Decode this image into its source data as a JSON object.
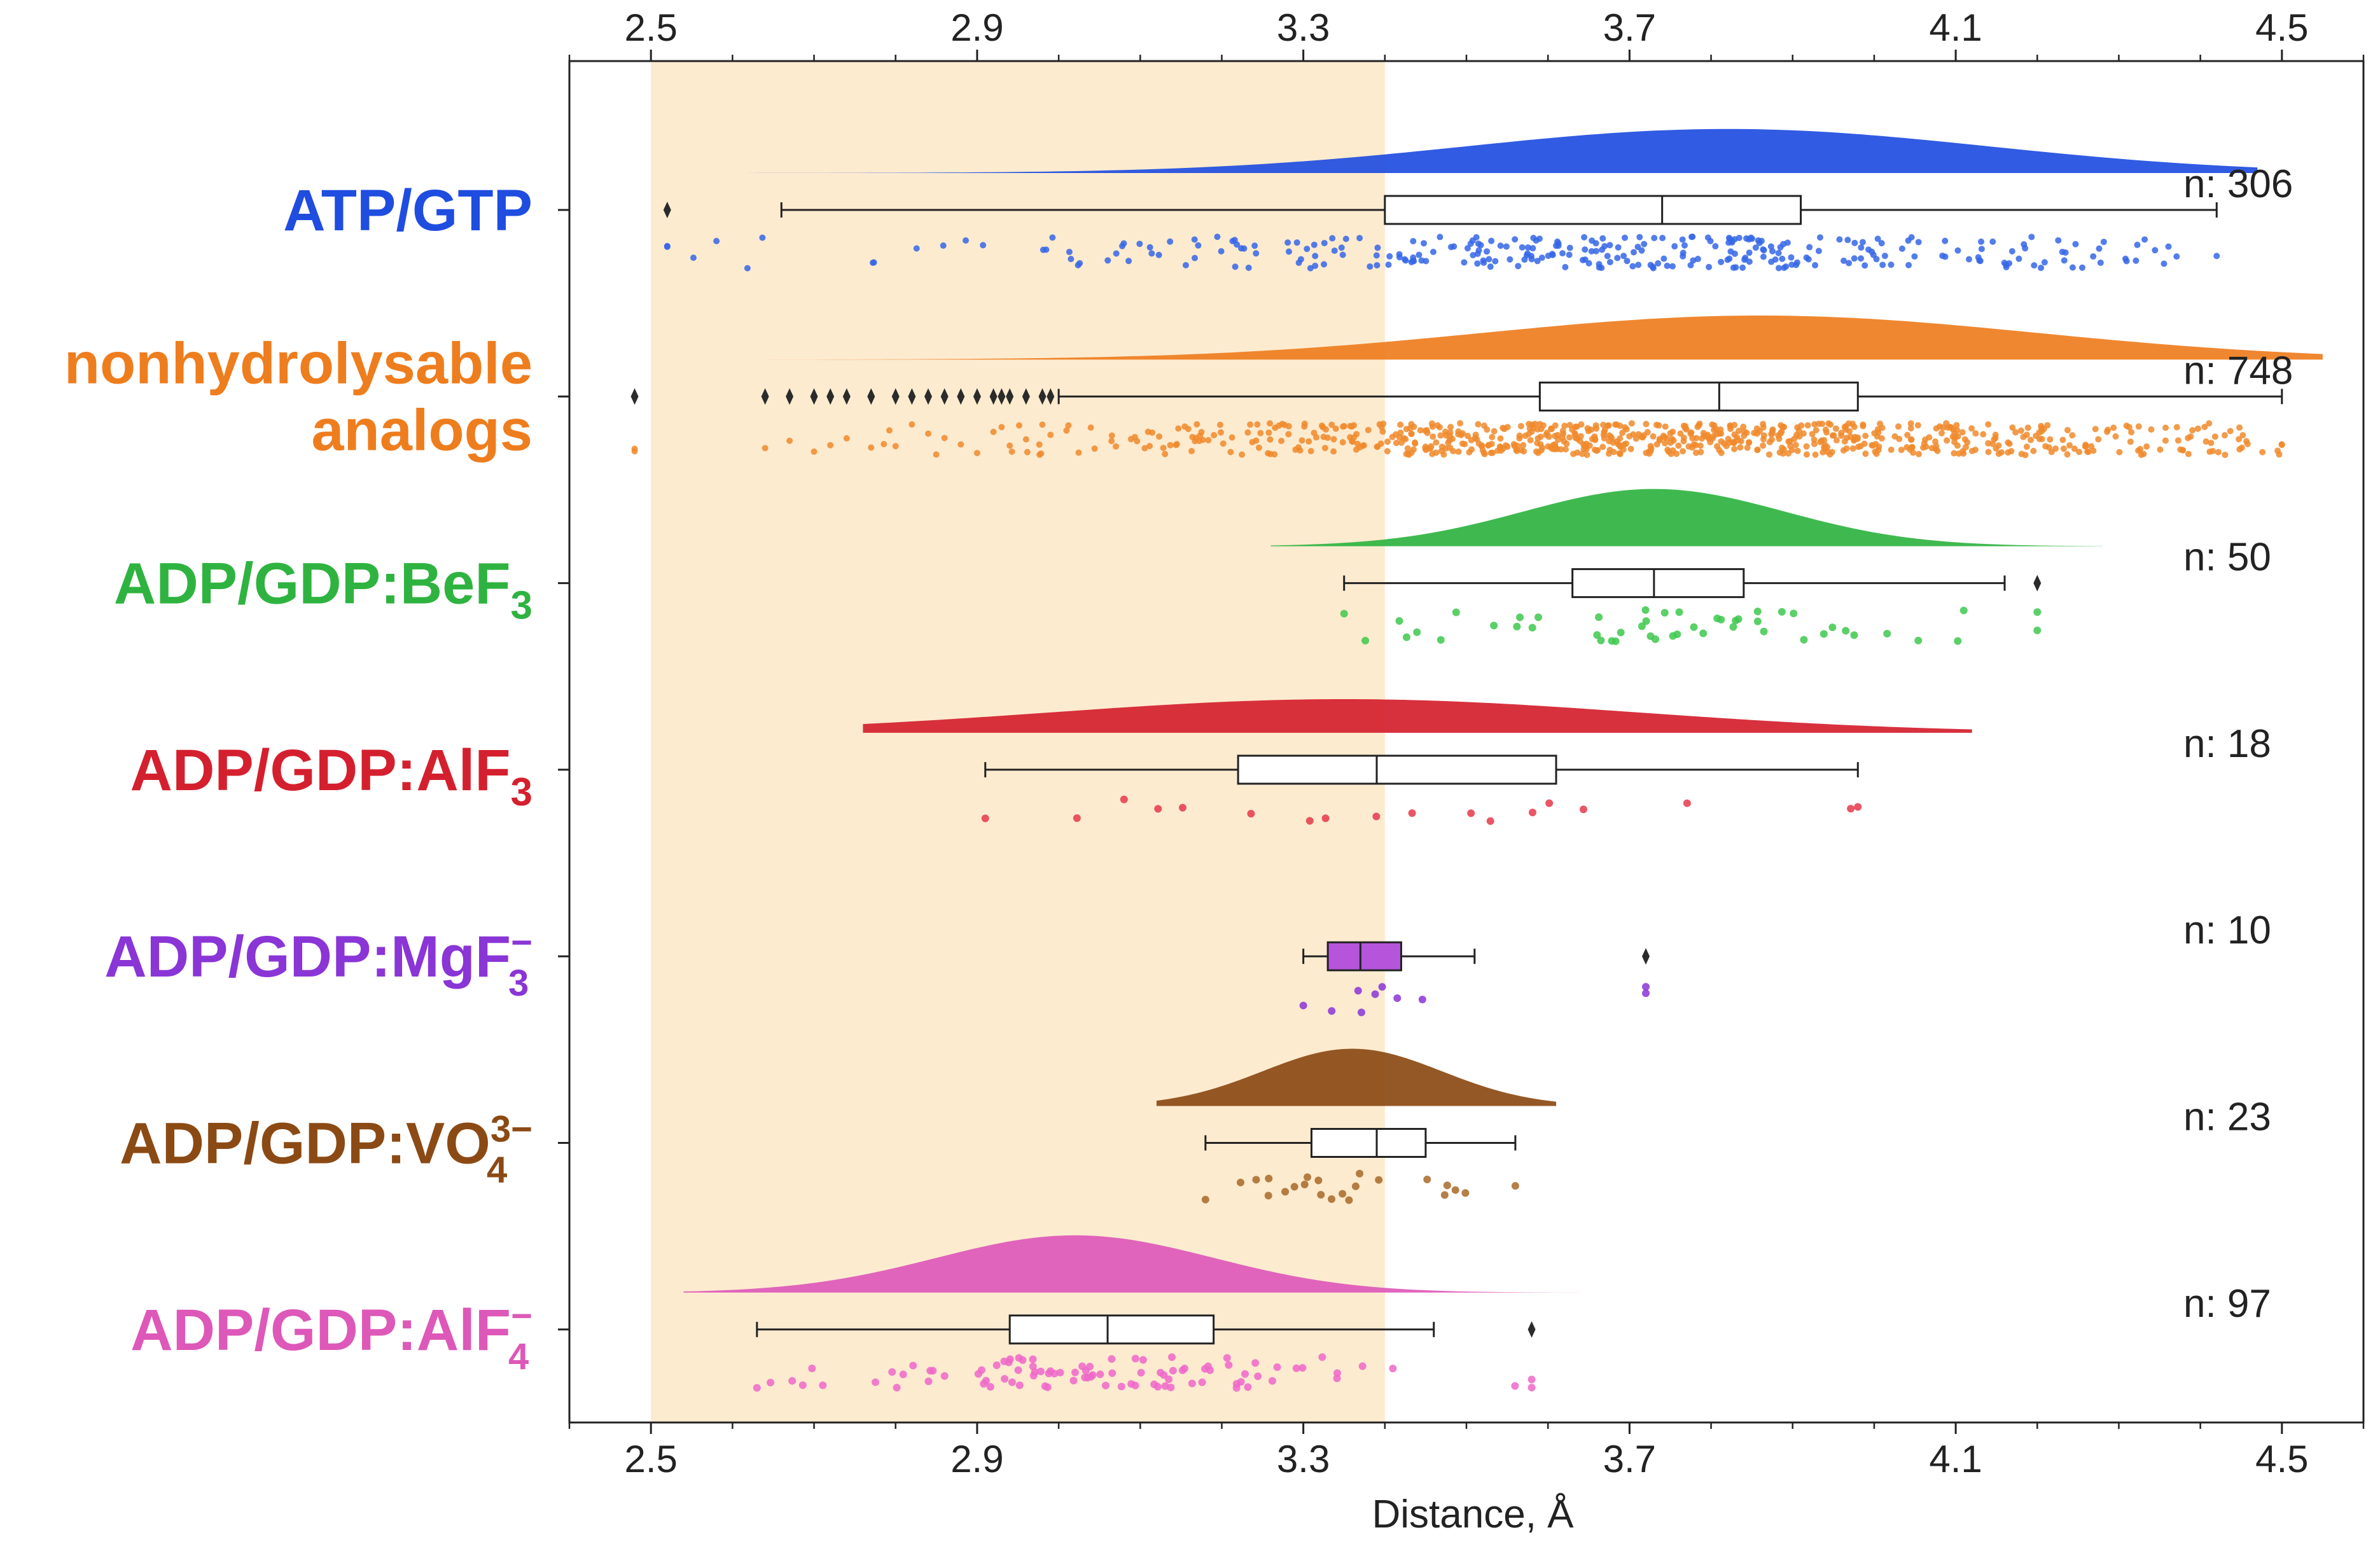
{
  "chart_data": {
    "type": "raincloud",
    "title": "",
    "xlabel": "Distance, Å",
    "ylabel": "",
    "xlim": [
      2.4,
      4.6
    ],
    "xticks": [
      2.5,
      2.9,
      3.3,
      3.7,
      4.1,
      4.5
    ],
    "xtick_labels": [
      "2.5",
      "2.9",
      "3.3",
      "3.7",
      "4.1",
      "4.5"
    ],
    "highlight_band": {
      "x0": 2.5,
      "x1": 3.4,
      "color": "#fdebd0"
    },
    "groups": [
      {
        "name": "ATP/GTP",
        "label_lines": [
          {
            "text": "ATP/GTP"
          }
        ],
        "n_label": "n: 306",
        "color": "#1f4de0",
        "point_color": "#3566e6",
        "box": {
          "whisker_low": 2.66,
          "q1": 3.4,
          "median": 3.74,
          "q3": 3.91,
          "whisker_high": 4.42
        },
        "outliers": [
          2.52
        ],
        "kde": {
          "mode": 3.82,
          "sd": 0.32,
          "x_min": 2.24,
          "x_max": 4.47,
          "peak": 0.55
        },
        "points": {
          "count": 306,
          "mean": 3.72,
          "sd": 0.4,
          "min": 2.52,
          "max": 4.42
        },
        "box_fill": "#ffffff"
      },
      {
        "name": "nonhydrolysable analogs",
        "label_lines": [
          {
            "text": "nonhydrolysable"
          },
          {
            "text": "analogs"
          }
        ],
        "n_label": "n: 748",
        "color": "#ee7d1e",
        "point_color": "#f08a2c",
        "box": {
          "whisker_low": 3.0,
          "q1": 3.59,
          "median": 3.81,
          "q3": 3.98,
          "whisker_high": 4.5
        },
        "outliers": [
          2.48,
          2.64,
          2.67,
          2.7,
          2.72,
          2.74,
          2.77,
          2.8,
          2.82,
          2.84,
          2.86,
          2.88,
          2.9,
          2.92,
          2.93,
          2.94,
          2.96,
          2.98,
          2.99
        ],
        "kde": {
          "mode": 3.86,
          "sd": 0.34,
          "x_min": 2.0,
          "x_max": 4.55,
          "peak": 0.55
        },
        "points": {
          "count": 748,
          "mean": 3.76,
          "sd": 0.38,
          "min": 2.48,
          "max": 4.5
        },
        "box_fill": "#ffffff"
      },
      {
        "name": "ADP/GDP:BeF3",
        "label_lines": [
          {
            "text": "ADP/GDP:BeF",
            "sub": "3"
          }
        ],
        "n_label": "n: 50",
        "color": "#2fb340",
        "point_color": "#3ec84e",
        "box": {
          "whisker_low": 3.35,
          "q1": 3.63,
          "median": 3.73,
          "q3": 3.84,
          "whisker_high": 4.16
        },
        "outliers": [
          4.2
        ],
        "kde": {
          "mode": 3.73,
          "sd": 0.16,
          "x_min": 3.26,
          "x_max": 4.28,
          "peak": 0.8
        },
        "points": {
          "count": 50,
          "mean": 3.74,
          "sd": 0.18,
          "min": 3.35,
          "max": 4.2
        },
        "box_fill": "#ffffff"
      },
      {
        "name": "ADP/GDP:AlF3",
        "label_lines": [
          {
            "text": "ADP/GDP:AlF",
            "sub": "3"
          }
        ],
        "n_label": "n: 18",
        "color": "#d4202e",
        "point_color": "#e5384a",
        "box": {
          "whisker_low": 2.91,
          "q1": 3.22,
          "median": 3.39,
          "q3": 3.61,
          "whisker_high": 3.98
        },
        "outliers": [],
        "kde": {
          "mode": 3.35,
          "sd": 0.36,
          "x_min": 2.76,
          "x_max": 4.12,
          "peak": 0.42
        },
        "points": {
          "count": 18,
          "mean": 3.42,
          "sd": 0.28,
          "min": 2.91,
          "max": 3.98
        },
        "box_fill": "#ffffff"
      },
      {
        "name": "ADP/GDP:MgF3-",
        "label_lines": [
          {
            "text": "ADP/GDP:MgF",
            "sub": "3",
            "sup": "−"
          }
        ],
        "n_label": "n: 10",
        "color": "#8a35d6",
        "point_color": "#8a35d6",
        "box": {
          "whisker_low": 3.3,
          "q1": 3.33,
          "median": 3.37,
          "q3": 3.42,
          "whisker_high": 3.51
        },
        "outliers": [
          3.72
        ],
        "kde": null,
        "points": {
          "count": 10,
          "mean": 3.38,
          "sd": 0.05,
          "min": 3.3,
          "max": 3.72
        },
        "box_fill": "#b455dc"
      },
      {
        "name": "ADP/GDP:VO4 3-",
        "label_lines": [
          {
            "text": "ADP/GDP:VO",
            "sub": "4",
            "sup": "3−"
          }
        ],
        "n_label": "n: 23",
        "color": "#8b4a14",
        "point_color": "#a86828",
        "box": {
          "whisker_low": 3.18,
          "q1": 3.31,
          "median": 3.39,
          "q3": 3.45,
          "whisker_high": 3.56
        },
        "outliers": [],
        "kde": {
          "mode": 3.36,
          "sd": 0.11,
          "x_min": 3.12,
          "x_max": 3.61,
          "peak": 1.0
        },
        "points": {
          "count": 23,
          "mean": 3.38,
          "sd": 0.1,
          "min": 3.18,
          "max": 3.56
        },
        "box_fill": "#ffffff"
      },
      {
        "name": "ADP/GDP:AlF4-",
        "label_lines": [
          {
            "text": "ADP/GDP:AlF",
            "sub": "4",
            "sup": "−"
          }
        ],
        "n_label": "n: 97",
        "color": "#dd58b8",
        "point_color": "#ef67c9",
        "box": {
          "whisker_low": 2.63,
          "q1": 2.94,
          "median": 3.06,
          "q3": 3.19,
          "whisker_high": 3.46
        },
        "outliers": [
          3.58
        ],
        "kde": {
          "mode": 3.02,
          "sd": 0.17,
          "x_min": 2.54,
          "x_max": 3.67,
          "peak": 0.78
        },
        "points": {
          "count": 97,
          "mean": 3.06,
          "sd": 0.18,
          "min": 2.63,
          "max": 3.58
        },
        "box_fill": "#ffffff"
      }
    ]
  }
}
